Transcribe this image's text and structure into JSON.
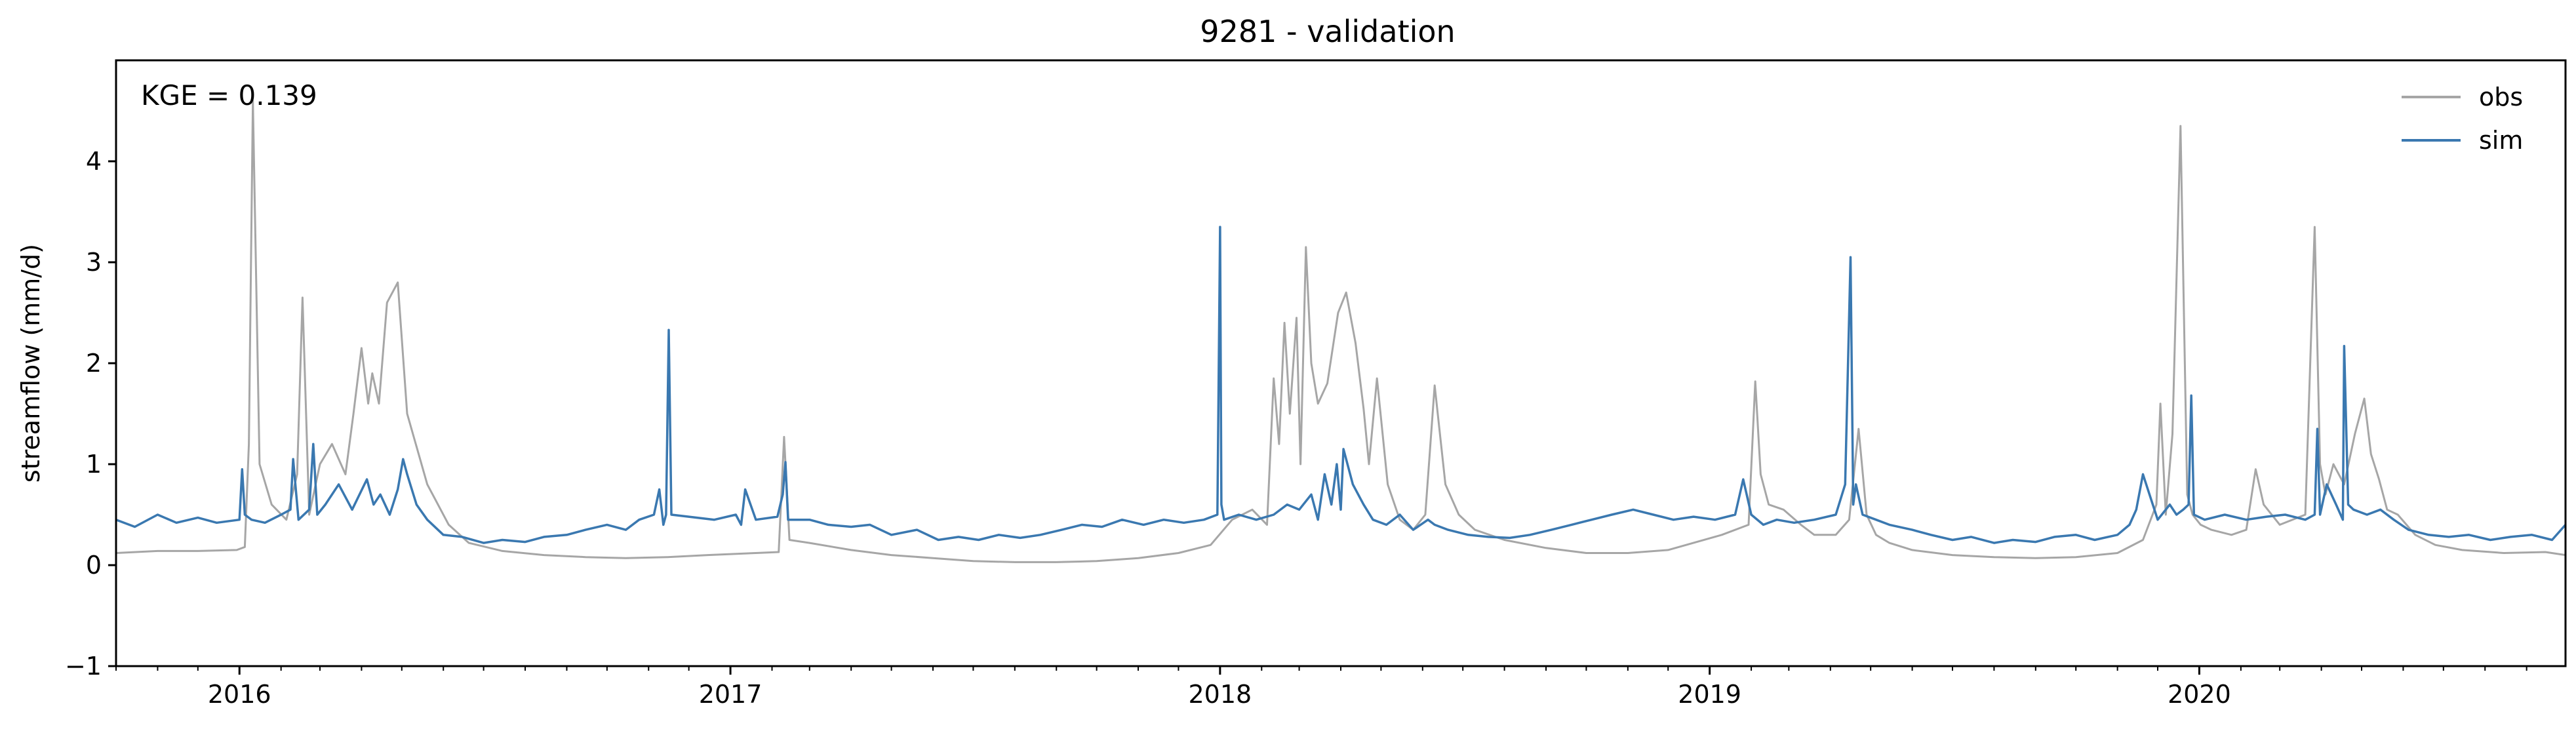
{
  "chart_data": {
    "type": "line",
    "title": "9281 - validation",
    "xlabel": "",
    "ylabel": "streamflow (mm/d)",
    "annotation": "KGE = 0.139",
    "xlim": [
      "2015-10-01",
      "2020-09-30"
    ],
    "ylim": [
      -1,
      5
    ],
    "y_ticks": [
      -1,
      0,
      1,
      2,
      3,
      4
    ],
    "x_tick_labels": [
      "2016",
      "2017",
      "2018",
      "2019",
      "2020"
    ],
    "x_tick_dates": [
      "2016-01-01",
      "2017-01-01",
      "2018-01-01",
      "2019-01-01",
      "2020-01-01"
    ],
    "grid": false,
    "legend_position": "top-right",
    "series": [
      {
        "name": "obs",
        "color": "#a6a6a6",
        "x": [
          "2015-10-01",
          "2015-11-01",
          "2015-12-01",
          "2015-12-30",
          "2016-01-05",
          "2016-01-08",
          "2016-01-11",
          "2016-01-16",
          "2016-01-25",
          "2016-02-05",
          "2016-02-13",
          "2016-02-17",
          "2016-02-22",
          "2016-03-01",
          "2016-03-10",
          "2016-03-20",
          "2016-03-26",
          "2016-04-01",
          "2016-04-06",
          "2016-04-09",
          "2016-04-14",
          "2016-04-20",
          "2016-04-28",
          "2016-05-05",
          "2016-05-20",
          "2016-06-05",
          "2016-06-20",
          "2016-07-15",
          "2016-08-15",
          "2016-09-15",
          "2016-10-15",
          "2016-11-15",
          "2016-12-15",
          "2017-01-20",
          "2017-02-06",
          "2017-02-10",
          "2017-02-14",
          "2017-03-01",
          "2017-04-01",
          "2017-05-01",
          "2017-06-01",
          "2017-07-01",
          "2017-08-01",
          "2017-09-01",
          "2017-10-01",
          "2017-11-01",
          "2017-12-01",
          "2017-12-25",
          "2018-01-10",
          "2018-01-25",
          "2018-02-05",
          "2018-02-10",
          "2018-02-14",
          "2018-02-18",
          "2018-02-22",
          "2018-02-27",
          "2018-03-02",
          "2018-03-06",
          "2018-03-10",
          "2018-03-15",
          "2018-03-22",
          "2018-03-30",
          "2018-04-05",
          "2018-04-12",
          "2018-04-18",
          "2018-04-22",
          "2018-04-28",
          "2018-05-06",
          "2018-05-15",
          "2018-05-25",
          "2018-06-03",
          "2018-06-10",
          "2018-06-18",
          "2018-06-28",
          "2018-07-10",
          "2018-08-01",
          "2018-09-01",
          "2018-10-01",
          "2018-11-01",
          "2018-12-01",
          "2019-01-10",
          "2019-01-30",
          "2019-02-04",
          "2019-02-08",
          "2019-02-14",
          "2019-02-25",
          "2019-03-10",
          "2019-03-20",
          "2019-04-05",
          "2019-04-15",
          "2019-04-22",
          "2019-04-28",
          "2019-05-05",
          "2019-05-15",
          "2019-06-01",
          "2019-07-01",
          "2019-08-01",
          "2019-09-01",
          "2019-10-01",
          "2019-11-01",
          "2019-11-20",
          "2019-11-30",
          "2019-12-03",
          "2019-12-07",
          "2019-12-12",
          "2019-12-18",
          "2019-12-23",
          "2019-12-27",
          "2020-01-02",
          "2020-01-10",
          "2020-01-25",
          "2020-02-05",
          "2020-02-12",
          "2020-02-18",
          "2020-03-01",
          "2020-03-20",
          "2020-03-27",
          "2020-03-31",
          "2020-04-04",
          "2020-04-10",
          "2020-04-18",
          "2020-04-26",
          "2020-05-03",
          "2020-05-08",
          "2020-05-14",
          "2020-05-20",
          "2020-05-28",
          "2020-06-10",
          "2020-06-25",
          "2020-07-15",
          "2020-08-15",
          "2020-09-15",
          "2020-09-30"
        ],
        "y": [
          0.12,
          0.14,
          0.14,
          0.15,
          0.18,
          1.2,
          4.6,
          1.0,
          0.6,
          0.45,
          0.9,
          2.65,
          0.5,
          1.0,
          1.2,
          0.9,
          1.5,
          2.15,
          1.6,
          1.9,
          1.6,
          2.6,
          2.8,
          1.5,
          0.8,
          0.4,
          0.22,
          0.14,
          0.1,
          0.08,
          0.07,
          0.08,
          0.1,
          0.12,
          0.13,
          1.27,
          0.25,
          0.22,
          0.15,
          0.1,
          0.07,
          0.04,
          0.03,
          0.03,
          0.04,
          0.07,
          0.12,
          0.2,
          0.45,
          0.55,
          0.4,
          1.85,
          1.2,
          2.4,
          1.5,
          2.45,
          1.0,
          3.15,
          2.0,
          1.6,
          1.8,
          2.5,
          2.7,
          2.2,
          1.55,
          1.0,
          1.85,
          0.8,
          0.45,
          0.35,
          0.5,
          1.78,
          0.8,
          0.5,
          0.35,
          0.25,
          0.17,
          0.12,
          0.12,
          0.15,
          0.3,
          0.4,
          1.82,
          0.9,
          0.6,
          0.55,
          0.4,
          0.3,
          0.3,
          0.45,
          1.35,
          0.5,
          0.3,
          0.22,
          0.15,
          0.1,
          0.08,
          0.07,
          0.08,
          0.12,
          0.25,
          0.6,
          1.6,
          0.5,
          1.3,
          4.35,
          0.7,
          0.5,
          0.4,
          0.35,
          0.3,
          0.35,
          0.95,
          0.6,
          0.4,
          0.5,
          3.35,
          1.0,
          0.7,
          1.0,
          0.8,
          1.3,
          1.65,
          1.1,
          0.85,
          0.55,
          0.5,
          0.3,
          0.2,
          0.15,
          0.12,
          0.13,
          0.1
        ]
      },
      {
        "name": "sim",
        "color": "#3a78b0",
        "x": [
          "2015-10-01",
          "2015-10-15",
          "2015-11-01",
          "2015-11-15",
          "2015-12-01",
          "2015-12-15",
          "2016-01-01",
          "2016-01-03",
          "2016-01-05",
          "2016-01-10",
          "2016-01-20",
          "2016-02-01",
          "2016-02-08",
          "2016-02-10",
          "2016-02-14",
          "2016-02-22",
          "2016-02-25",
          "2016-02-28",
          "2016-03-05",
          "2016-03-15",
          "2016-03-25",
          "2016-04-05",
          "2016-04-10",
          "2016-04-15",
          "2016-04-22",
          "2016-04-28",
          "2016-05-02",
          "2016-05-05",
          "2016-05-12",
          "2016-05-20",
          "2016-06-01",
          "2016-06-15",
          "2016-07-01",
          "2016-07-15",
          "2016-08-01",
          "2016-08-15",
          "2016-09-01",
          "2016-09-15",
          "2016-10-01",
          "2016-10-15",
          "2016-10-25",
          "2016-11-05",
          "2016-11-09",
          "2016-11-12",
          "2016-11-14",
          "2016-11-16",
          "2016-11-18",
          "2016-12-01",
          "2016-12-20",
          "2017-01-05",
          "2017-01-09",
          "2017-01-12",
          "2017-01-20",
          "2017-02-05",
          "2017-02-09",
          "2017-02-11",
          "2017-02-13",
          "2017-03-01",
          "2017-03-15",
          "2017-04-01",
          "2017-04-15",
          "2017-05-01",
          "2017-05-20",
          "2017-06-05",
          "2017-06-20",
          "2017-07-05",
          "2017-07-20",
          "2017-08-05",
          "2017-08-20",
          "2017-09-05",
          "2017-09-20",
          "2017-10-05",
          "2017-10-20",
          "2017-11-05",
          "2017-11-20",
          "2017-12-05",
          "2017-12-20",
          "2017-12-30",
          "2018-01-01",
          "2018-01-02",
          "2018-01-04",
          "2018-01-15",
          "2018-01-28",
          "2018-02-10",
          "2018-02-20",
          "2018-03-01",
          "2018-03-10",
          "2018-03-15",
          "2018-03-20",
          "2018-03-25",
          "2018-03-29",
          "2018-04-01",
          "2018-04-03",
          "2018-04-10",
          "2018-04-18",
          "2018-04-25",
          "2018-05-05",
          "2018-05-15",
          "2018-05-25",
          "2018-06-05",
          "2018-06-10",
          "2018-06-20",
          "2018-07-05",
          "2018-07-20",
          "2018-08-05",
          "2018-08-20",
          "2018-09-05",
          "2018-09-20",
          "2018-10-05",
          "2018-10-20",
          "2018-11-05",
          "2018-11-20",
          "2018-12-05",
          "2018-12-20",
          "2019-01-05",
          "2019-01-20",
          "2019-01-26",
          "2019-02-01",
          "2019-02-10",
          "2019-02-20",
          "2019-03-05",
          "2019-03-20",
          "2019-04-05",
          "2019-04-12",
          "2019-04-16",
          "2019-04-18",
          "2019-04-20",
          "2019-04-25",
          "2019-05-05",
          "2019-05-15",
          "2019-06-01",
          "2019-06-15",
          "2019-07-01",
          "2019-07-15",
          "2019-08-01",
          "2019-08-15",
          "2019-09-01",
          "2019-09-15",
          "2019-10-01",
          "2019-10-15",
          "2019-10-25",
          "2019-11-01",
          "2019-11-10",
          "2019-11-15",
          "2019-11-20",
          "2019-12-01",
          "2019-12-10",
          "2019-12-15",
          "2019-12-20",
          "2019-12-24",
          "2019-12-26",
          "2019-12-28",
          "2020-01-05",
          "2020-01-20",
          "2020-02-05",
          "2020-02-20",
          "2020-03-05",
          "2020-03-20",
          "2020-03-27",
          "2020-03-29",
          "2020-03-31",
          "2020-04-05",
          "2020-04-12",
          "2020-04-17",
          "2020-04-18",
          "2020-04-21",
          "2020-04-25",
          "2020-05-05",
          "2020-05-15",
          "2020-05-25",
          "2020-06-05",
          "2020-06-20",
          "2020-07-05",
          "2020-07-20",
          "2020-08-05",
          "2020-08-20",
          "2020-09-05",
          "2020-09-20",
          "2020-09-30"
        ],
        "y": [
          0.45,
          0.38,
          0.5,
          0.42,
          0.47,
          0.42,
          0.45,
          0.95,
          0.5,
          0.45,
          0.42,
          0.5,
          0.55,
          1.05,
          0.45,
          0.55,
          1.2,
          0.5,
          0.6,
          0.8,
          0.55,
          0.85,
          0.6,
          0.7,
          0.5,
          0.75,
          1.05,
          0.9,
          0.6,
          0.45,
          0.3,
          0.28,
          0.22,
          0.25,
          0.23,
          0.28,
          0.3,
          0.35,
          0.4,
          0.35,
          0.45,
          0.5,
          0.75,
          0.4,
          0.5,
          2.33,
          0.5,
          0.48,
          0.45,
          0.5,
          0.4,
          0.75,
          0.45,
          0.48,
          0.7,
          1.02,
          0.45,
          0.45,
          0.4,
          0.38,
          0.4,
          0.3,
          0.35,
          0.25,
          0.28,
          0.25,
          0.3,
          0.27,
          0.3,
          0.35,
          0.4,
          0.38,
          0.45,
          0.4,
          0.45,
          0.42,
          0.45,
          0.5,
          3.35,
          0.6,
          0.45,
          0.5,
          0.45,
          0.5,
          0.6,
          0.55,
          0.7,
          0.45,
          0.9,
          0.6,
          1.0,
          0.55,
          1.15,
          0.8,
          0.6,
          0.45,
          0.4,
          0.5,
          0.35,
          0.45,
          0.4,
          0.35,
          0.3,
          0.28,
          0.27,
          0.3,
          0.35,
          0.4,
          0.45,
          0.5,
          0.55,
          0.5,
          0.45,
          0.48,
          0.45,
          0.5,
          0.85,
          0.5,
          0.4,
          0.45,
          0.42,
          0.45,
          0.5,
          0.8,
          3.05,
          0.6,
          0.8,
          0.5,
          0.45,
          0.4,
          0.35,
          0.3,
          0.25,
          0.28,
          0.22,
          0.25,
          0.23,
          0.28,
          0.3,
          0.25,
          0.28,
          0.3,
          0.4,
          0.55,
          0.9,
          0.45,
          0.6,
          0.5,
          0.55,
          0.6,
          1.68,
          0.5,
          0.45,
          0.5,
          0.45,
          0.48,
          0.5,
          0.45,
          0.5,
          1.35,
          0.5,
          0.8,
          0.6,
          0.45,
          2.17,
          0.6,
          0.55,
          0.5,
          0.55,
          0.45,
          0.35,
          0.3,
          0.28,
          0.3,
          0.25,
          0.28,
          0.3,
          0.25,
          0.4
        ]
      }
    ]
  }
}
